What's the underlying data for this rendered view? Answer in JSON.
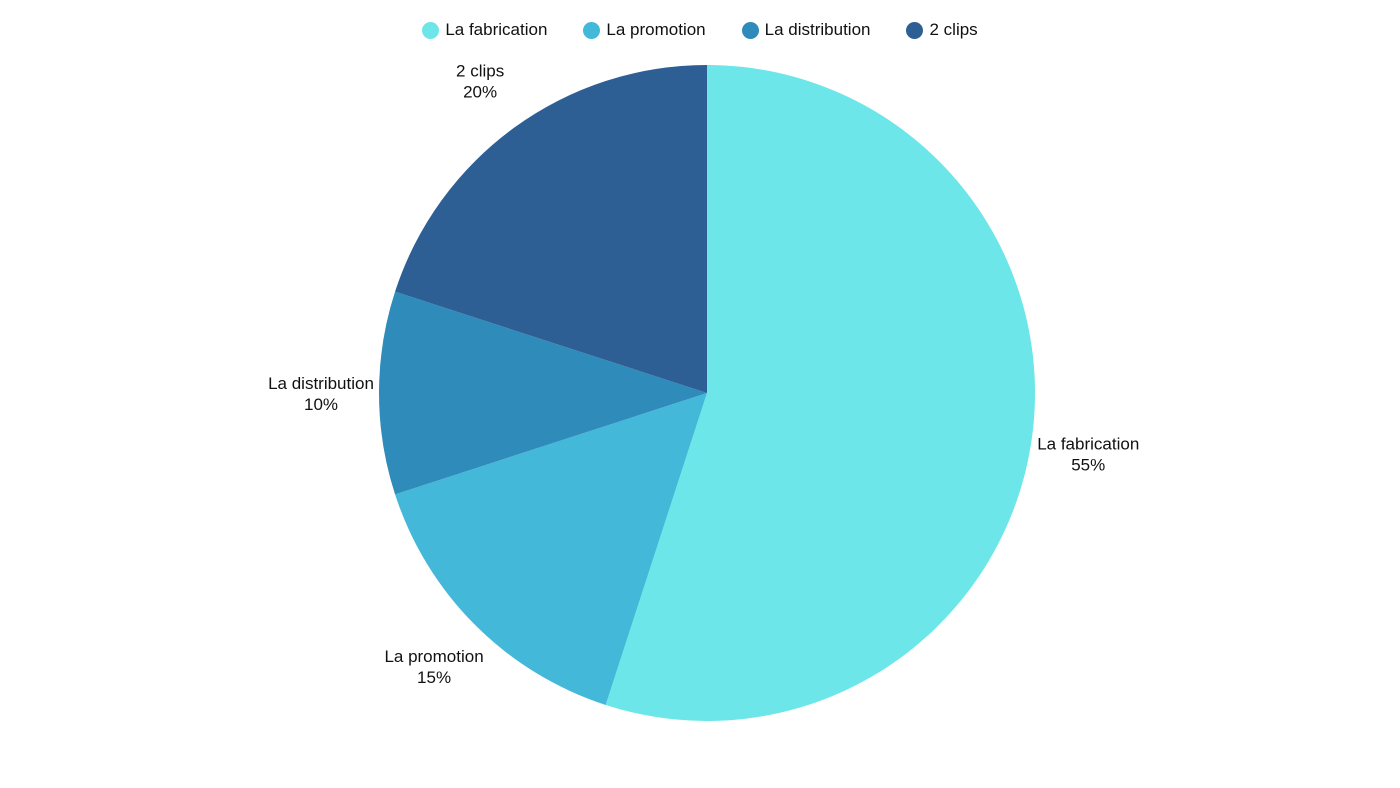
{
  "chart_data": {
    "type": "pie",
    "slices": [
      {
        "label": "La fabrication",
        "value": 55,
        "display": "55%",
        "color": "#6ce6e8"
      },
      {
        "label": "La promotion",
        "value": 15,
        "display": "15%",
        "color": "#43b8d8"
      },
      {
        "label": "La distribution",
        "value": 10,
        "display": "10%",
        "color": "#2e8bba"
      },
      {
        "label": "2 clips",
        "value": 20,
        "display": "20%",
        "color": "#2d5f95"
      }
    ],
    "start_angle": "top",
    "direction": "clockwise",
    "legend_position": "top",
    "labels_position": "outside"
  }
}
